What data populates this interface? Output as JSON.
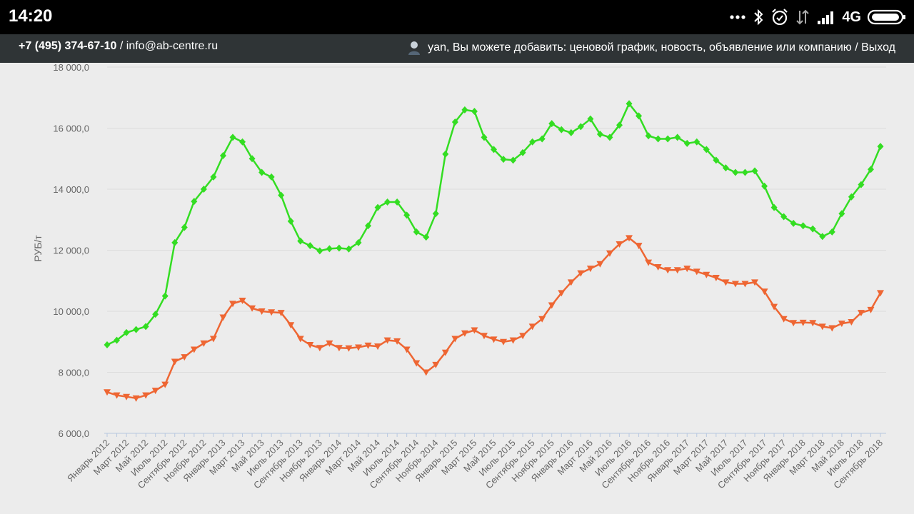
{
  "status_bar": {
    "time": "14:20",
    "network": "4G",
    "icons": [
      "more-dots-icon",
      "bluetooth-icon",
      "alarm-icon",
      "data-arrows-icon",
      "signal-icon",
      "battery-icon"
    ]
  },
  "header": {
    "phone": "+7 (495) 374-67-10",
    "separator": " / ",
    "email": "info@ab-centre.ru",
    "user_text": "yan, Вы можете добавить: ценовой график, новость, объявление или компанию / Выход"
  },
  "colors": {
    "series_green": "#33dd22",
    "series_orange": "#ee6633",
    "grid": "#dcdcdc"
  },
  "chart_data": {
    "type": "line",
    "ylabel": "РУБ/т",
    "ylim": [
      6000,
      18000
    ],
    "yticks": [
      {
        "value": 6000,
        "label": "6 000,0"
      },
      {
        "value": 8000,
        "label": "8 000,0"
      },
      {
        "value": 10000,
        "label": "10 000,0"
      },
      {
        "value": 12000,
        "label": "12 000,0"
      },
      {
        "value": 14000,
        "label": "14 000,0"
      },
      {
        "value": 16000,
        "label": "16 000,0"
      },
      {
        "value": 18000,
        "label": "18 000,0"
      }
    ],
    "x_labels": [
      "Январь 2012",
      "Март 2012",
      "Май 2012",
      "Июль 2012",
      "Сентябрь 2012",
      "Ноябрь 2012",
      "Январь 2013",
      "Март 2013",
      "Май 2013",
      "Июль 2013",
      "Сентябрь 2013",
      "Ноябрь 2013",
      "Январь 2014",
      "Март 2014",
      "Май 2014",
      "Июль 2014",
      "Сентябрь 2014",
      "Ноябрь 2014",
      "Январь 2015",
      "Март 2015",
      "Май 2015",
      "Июль 2015",
      "Сентябрь 2015",
      "Ноябрь 2015",
      "Январь 2016",
      "Март 2016",
      "Май 2016",
      "Июль 2016",
      "Сентябрь 2016",
      "Ноябрь 2016",
      "Январь 2017",
      "Март 2017",
      "Май 2017",
      "Июль 2017",
      "Сентябрь 2017",
      "Ноябрь 2017",
      "Январь 2018",
      "Март 2018",
      "Май 2018",
      "Июль 2018",
      "Сентябрь 2018"
    ],
    "series": [
      {
        "marker": "diamond",
        "color": "#33dd22",
        "values": [
          8900,
          9050,
          9300,
          9400,
          9500,
          9900,
          10500,
          12250,
          12750,
          13600,
          14000,
          14400,
          15100,
          15700,
          15550,
          15000,
          14550,
          14400,
          13800,
          12950,
          12300,
          12150,
          11980,
          12050,
          12070,
          12040,
          12250,
          12800,
          13400,
          13580,
          13580,
          13150,
          12600,
          12430,
          13200,
          15150,
          16200,
          16600,
          16550,
          15700,
          15300,
          14980,
          14950,
          15200,
          15550,
          15650,
          16150,
          15950,
          15850,
          16050,
          16300,
          15800,
          15700,
          16100,
          16800,
          16400,
          15750,
          15650,
          15650,
          15700,
          15500,
          15550,
          15300,
          14950,
          14700,
          14550,
          14550,
          14600,
          14100,
          13400,
          13100,
          12880,
          12800,
          12700,
          12450,
          12600,
          13200,
          13750,
          14150,
          14650,
          15400
        ]
      },
      {
        "marker": "triangle-down",
        "color": "#ee6633",
        "values": [
          7350,
          7250,
          7200,
          7150,
          7250,
          7400,
          7600,
          8350,
          8500,
          8750,
          8950,
          9100,
          9800,
          10250,
          10350,
          10100,
          10000,
          9970,
          9950,
          9550,
          9100,
          8900,
          8800,
          8950,
          8800,
          8790,
          8820,
          8880,
          8850,
          9050,
          9020,
          8750,
          8300,
          8000,
          8250,
          8650,
          9100,
          9280,
          9380,
          9200,
          9080,
          9000,
          9050,
          9200,
          9500,
          9750,
          10200,
          10600,
          10950,
          11250,
          11400,
          11550,
          11900,
          12200,
          12400,
          12150,
          11600,
          11450,
          11350,
          11350,
          11400,
          11300,
          11200,
          11100,
          10950,
          10900,
          10900,
          10950,
          10650,
          10150,
          9750,
          9620,
          9630,
          9620,
          9500,
          9450,
          9600,
          9650,
          9950,
          10050,
          10600
        ]
      }
    ]
  }
}
